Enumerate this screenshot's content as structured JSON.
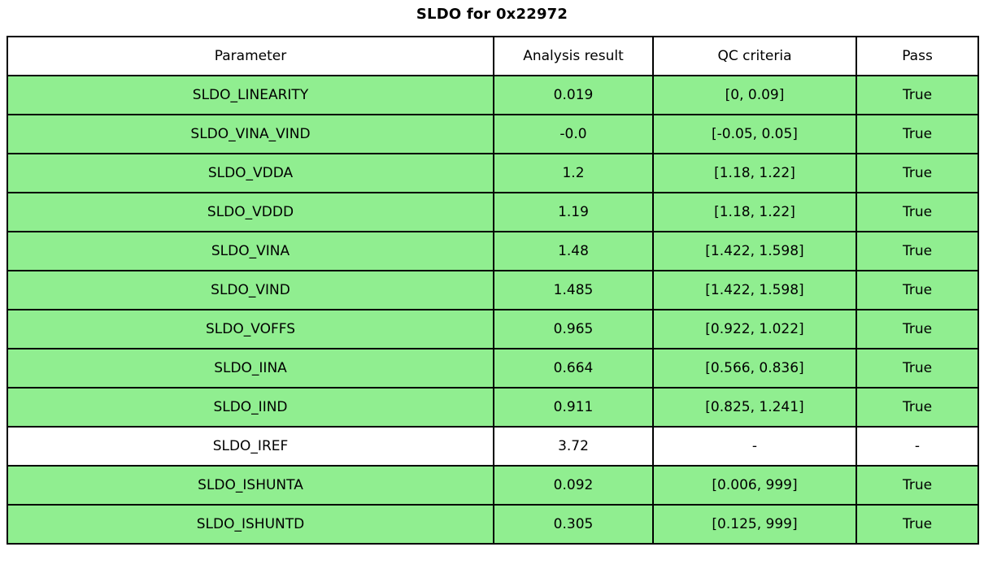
{
  "title": "SLDO for 0x22972",
  "chart_data": {
    "type": "table",
    "title": "SLDO for 0x22972",
    "columns": [
      "Parameter",
      "Analysis result",
      "QC criteria",
      "Pass"
    ],
    "rows": [
      {
        "parameter": "SLDO_LINEARITY",
        "result": "0.019",
        "criteria": "[0, 0.09]",
        "pass": "True"
      },
      {
        "parameter": "SLDO_VINA_VIND",
        "result": "-0.0",
        "criteria": "[-0.05, 0.05]",
        "pass": "True"
      },
      {
        "parameter": "SLDO_VDDA",
        "result": "1.2",
        "criteria": "[1.18, 1.22]",
        "pass": "True"
      },
      {
        "parameter": "SLDO_VDDD",
        "result": "1.19",
        "criteria": "[1.18, 1.22]",
        "pass": "True"
      },
      {
        "parameter": "SLDO_VINA",
        "result": "1.48",
        "criteria": "[1.422, 1.598]",
        "pass": "True"
      },
      {
        "parameter": "SLDO_VIND",
        "result": "1.485",
        "criteria": "[1.422, 1.598]",
        "pass": "True"
      },
      {
        "parameter": "SLDO_VOFFS",
        "result": "0.965",
        "criteria": "[0.922, 1.022]",
        "pass": "True"
      },
      {
        "parameter": "SLDO_IINA",
        "result": "0.664",
        "criteria": "[0.566, 0.836]",
        "pass": "True"
      },
      {
        "parameter": "SLDO_IIND",
        "result": "0.911",
        "criteria": "[0.825, 1.241]",
        "pass": "True"
      },
      {
        "parameter": "SLDO_IREF",
        "result": "3.72",
        "criteria": "-",
        "pass": "-"
      },
      {
        "parameter": "SLDO_ISHUNTA",
        "result": "0.092",
        "criteria": "[0.006, 999]",
        "pass": "True"
      },
      {
        "parameter": "SLDO_ISHUNTD",
        "result": "0.305",
        "criteria": "[0.125, 999]",
        "pass": "True"
      }
    ],
    "layout": {
      "legend": "none",
      "grid": "full-cell-borders",
      "pass_row_bg": "#90EE90",
      "neutral_row_bg": "#FFFFFF",
      "header_bg": "#FFFFFF",
      "border_color": "#000000",
      "text_color": "#000000"
    }
  }
}
